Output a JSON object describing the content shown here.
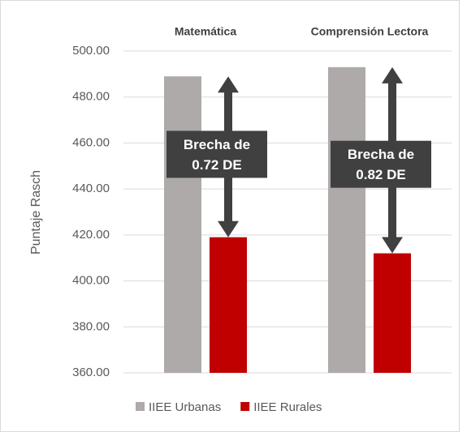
{
  "chart_data": {
    "type": "bar",
    "y_label": "Puntaje Rasch",
    "categories": [
      "Matemática",
      "Comprensión Lectora"
    ],
    "series": [
      {
        "name": "IIEE Urbanas",
        "color": "#aeaaaa",
        "values": [
          489,
          493
        ]
      },
      {
        "name": "IIEE Rurales",
        "color": "#c00000",
        "values": [
          419,
          412
        ]
      }
    ],
    "annotations": [
      [
        "Brecha de",
        "0.72 DE"
      ],
      [
        "Brecha de",
        "0.82 DE"
      ]
    ],
    "ylim": [
      360,
      500
    ],
    "yticks": [
      {
        "value": 360,
        "label": "360.00"
      },
      {
        "value": 380,
        "label": "380.00"
      },
      {
        "value": 400,
        "label": "400.00"
      },
      {
        "value": 420,
        "label": "420.00"
      },
      {
        "value": 440,
        "label": "440.00"
      },
      {
        "value": 460,
        "label": "460.00"
      },
      {
        "value": 480,
        "label": "480.00"
      },
      {
        "value": 500,
        "label": "500.00"
      }
    ],
    "grid": true,
    "legend": "bottom"
  }
}
